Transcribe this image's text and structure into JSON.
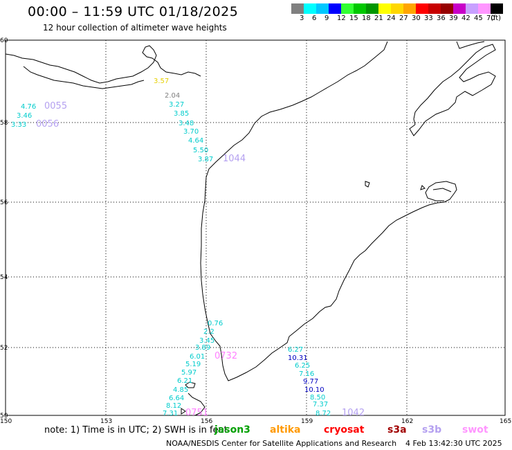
{
  "title": "00:00 – 11:59 UTC 01/18/2025",
  "subtitle": "12 hour collection of altimeter wave heights",
  "legend": {
    "colors": [
      "#808080",
      "#00ffff",
      "#00c8ff",
      "#0000ff",
      "#32ff32",
      "#00c800",
      "#009600",
      "#ffff00",
      "#ffd700",
      "#ffa500",
      "#ff0000",
      "#c80000",
      "#960000",
      "#c800c8",
      "#c8a0ff",
      "#ff96ff",
      "#000000"
    ],
    "labels": [
      "3",
      "6",
      "9",
      "12",
      "15",
      "18",
      "21",
      "24",
      "27",
      "30",
      "33",
      "36",
      "39",
      "42",
      "45",
      "70",
      "(ft)"
    ]
  },
  "axes": {
    "lat_labels": [
      "60",
      "58",
      "56",
      "54",
      "52",
      "50"
    ],
    "lon_labels": [
      "150",
      "153",
      "156",
      "159",
      "162",
      "165"
    ]
  },
  "tracks": [
    {
      "name": "jason3-track-a",
      "color": "#808080",
      "values": [
        "3.57",
        "2.04"
      ]
    },
    {
      "name": "cryosat-track-a",
      "color": "#00cccc",
      "values": [
        "3.27",
        "3.85",
        "3.48",
        "3.70",
        "4.64",
        "5.50",
        "3.87"
      ]
    },
    {
      "name": "west-track",
      "color": "#00cccc",
      "values": [
        "4.76",
        "3.46",
        "3.33"
      ]
    },
    {
      "name": "s3b-times-north",
      "color": "#b4a0f0",
      "values": [
        "0055",
        "0056",
        "1044"
      ]
    },
    {
      "name": "kamchatka-track",
      "color": "#00cccc",
      "values": [
        "0.76",
        "2.2",
        "3.45",
        "3.89",
        "6.01",
        "5.19",
        "5.97",
        "6.21",
        "4.85",
        "6.64",
        "8.12",
        "7.31"
      ]
    },
    {
      "name": "swot-times",
      "color": "#ff80ff",
      "values": [
        "0732",
        "0751"
      ]
    },
    {
      "name": "east-track",
      "color": "#00cccc",
      "values": [
        "6.27",
        "10.31",
        "6.25",
        "7.16",
        "9.77",
        "10.10",
        "8.50",
        "7.37",
        "8.72",
        "1042"
      ]
    }
  ],
  "note": "note: 1) Time is in UTC; 2) SWH is in feet",
  "satellites": [
    {
      "name": "jason3",
      "color": "#00a000"
    },
    {
      "name": "altika",
      "color": "#ff9900"
    },
    {
      "name": "cryosat",
      "color": "#ff0000"
    },
    {
      "name": "s3a",
      "color": "#a00000"
    },
    {
      "name": "s3b",
      "color": "#b4a0f0"
    },
    {
      "name": "swot",
      "color": "#ff96ff"
    }
  ],
  "footer_left": "NOAA/NESDIS Center for Satellite Applications and Research",
  "footer_right": "4 Feb 13:42:30 UTC 2025"
}
